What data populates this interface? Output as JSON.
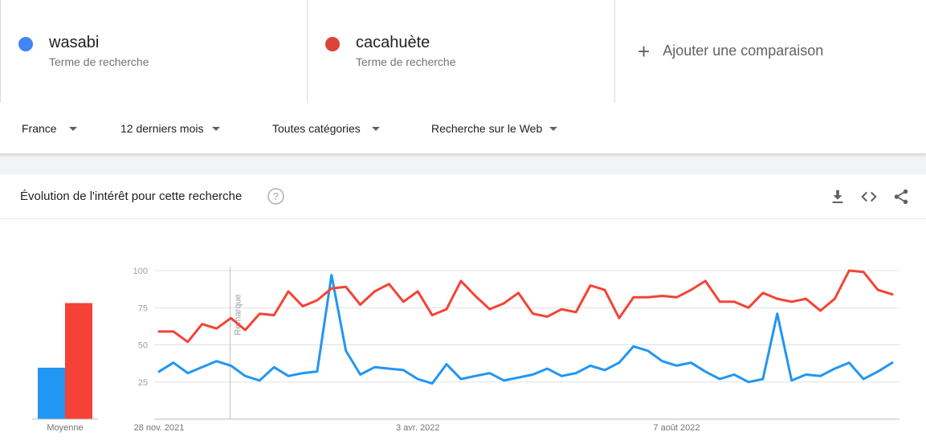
{
  "terms": [
    {
      "name": "wasabi",
      "subtitle": "Terme de recherche",
      "color": "#4285f4"
    },
    {
      "name": "cacahuète",
      "subtitle": "Terme de recherche",
      "color": "#db4437"
    }
  ],
  "add_comparison": {
    "icon": "plus-icon",
    "label": "Ajouter une comparaison"
  },
  "filters": [
    {
      "label": "France"
    },
    {
      "label": "12 derniers mois"
    },
    {
      "label": "Toutes catégories"
    },
    {
      "label": "Recherche sur le Web"
    }
  ],
  "card": {
    "title": "Évolution de l'intérêt pour cette recherche",
    "icons": [
      "help-icon",
      "download-icon",
      "embed-icon",
      "share-icon"
    ]
  },
  "colors": {
    "wasabi": "#2196f3",
    "cacahuete": "#f44336",
    "grid": "#e0e0e0"
  },
  "chart_data": {
    "type": "line",
    "x_labels": [
      {
        "index": 0,
        "label": "28 nov. 2021"
      },
      {
        "index": 18,
        "label": "3 avr. 2022"
      },
      {
        "index": 36,
        "label": "7 août 2022"
      }
    ],
    "y_ticks": [
      25,
      50,
      75,
      100
    ],
    "ylim": [
      0,
      100
    ],
    "annotation": {
      "index": 5,
      "label": "Remarque"
    },
    "series": [
      {
        "name": "wasabi",
        "values": [
          32,
          38,
          31,
          35,
          39,
          36,
          29,
          26,
          35,
          29,
          31,
          32,
          97,
          46,
          30,
          35,
          34,
          33,
          27,
          24,
          37,
          27,
          29,
          31,
          26,
          28,
          30,
          34,
          29,
          31,
          36,
          33,
          38,
          49,
          46,
          39,
          36,
          38,
          32,
          27,
          30,
          25,
          27,
          71,
          26,
          30,
          29,
          34,
          38,
          27,
          32,
          38
        ]
      },
      {
        "name": "cacahuète",
        "values": [
          59,
          59,
          52,
          64,
          61,
          68,
          60,
          71,
          70,
          86,
          76,
          80,
          88,
          89,
          77,
          86,
          91,
          79,
          86,
          70,
          74,
          93,
          83,
          74,
          78,
          85,
          71,
          69,
          74,
          72,
          90,
          87,
          68,
          82,
          82,
          83,
          82,
          87,
          93,
          79,
          79,
          75,
          85,
          81,
          79,
          81,
          73,
          81,
          100,
          99,
          87,
          84
        ]
      }
    ],
    "averages": [
      {
        "name": "wasabi",
        "value": 35
      },
      {
        "name": "cacahuète",
        "value": 79
      }
    ],
    "average_label": "Moyenne"
  }
}
